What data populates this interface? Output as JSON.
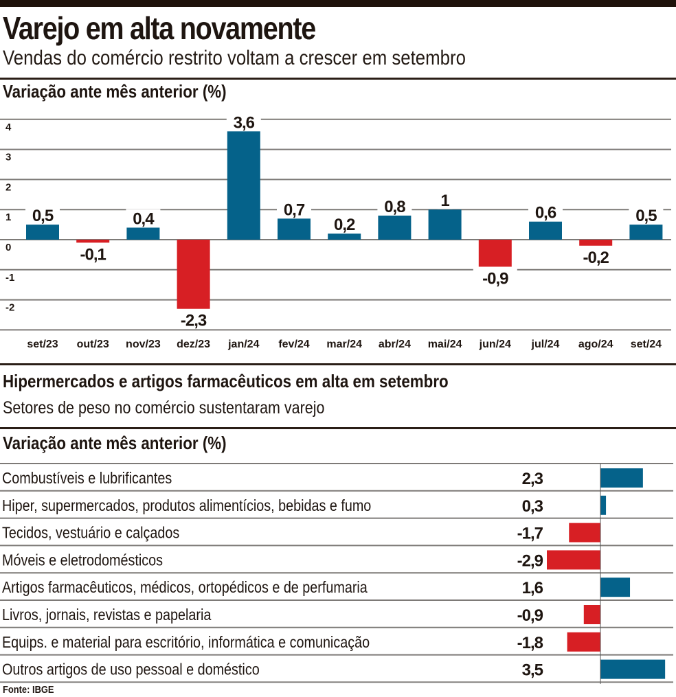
{
  "header": {
    "title": "Varejo em alta novamente",
    "subtitle": "Vendas do comércio restrito voltam a crescer em setembro"
  },
  "colors": {
    "positive": "#05628a",
    "negative": "#d71f24",
    "grid": "#7d7a77",
    "text": "#1e1510"
  },
  "chart_data": [
    {
      "type": "bar",
      "title": "Variação ante mês anterior (%)",
      "xlabel": "",
      "ylabel": "",
      "categories": [
        "set/23",
        "out/23",
        "nov/23",
        "dez/23",
        "jan/24",
        "fev/24",
        "mar/24",
        "abr/24",
        "mai/24",
        "jun/24",
        "jul/24",
        "ago/24",
        "set/24"
      ],
      "values": [
        0.5,
        -0.1,
        0.4,
        -2.3,
        3.6,
        0.7,
        0.2,
        0.8,
        1,
        -0.9,
        0.6,
        -0.2,
        0.5
      ],
      "value_labels": [
        "0,5",
        "-0,1",
        "0,4",
        "-2,3",
        "3,6",
        "0,7",
        "0,2",
        "0,8",
        "1",
        "-0,9",
        "0,6",
        "-0,2",
        "0,5"
      ],
      "ylim": [
        -3,
        4
      ],
      "yticks": [
        4,
        3,
        2,
        1,
        0,
        -1,
        -2
      ],
      "ytick_labels": [
        "4",
        "3",
        "2",
        "1",
        "0",
        "-1",
        "-2"
      ],
      "grid": true,
      "legend": "none"
    },
    {
      "type": "bar",
      "orientation": "horizontal",
      "title": "Hipermercados e artigos farmacêuticos em alta em setembro",
      "subtitle": "Setores de peso no comércio sustentaram varejo",
      "axis_title": "Variação ante mês anterior (%)",
      "categories": [
        "Combustíveis e lubrificantes",
        "Hiper, supermercados, produtos alimentícios, bebidas e fumo",
        "Tecidos, vestuário e calçados",
        "Móveis e eletrodomésticos",
        "Artigos farmacêuticos, médicos, ortopédicos e de perfumaria",
        "Livros, jornais, revistas e papelaria",
        "Equips. e material para escritório, informática e comunicação",
        "Outros artigos de uso pessoal e doméstico"
      ],
      "values": [
        2.3,
        0.3,
        -1.7,
        -2.9,
        1.6,
        -0.9,
        -1.8,
        3.5
      ],
      "value_labels": [
        "2,3",
        "0,3",
        "-1,7",
        "-2,9",
        "1,6",
        "-0,9",
        "-1,8",
        "3,5"
      ],
      "xlim": [
        -3,
        3.7
      ],
      "grid": false,
      "legend": "none"
    }
  ],
  "source": "Fonte: IBGE"
}
